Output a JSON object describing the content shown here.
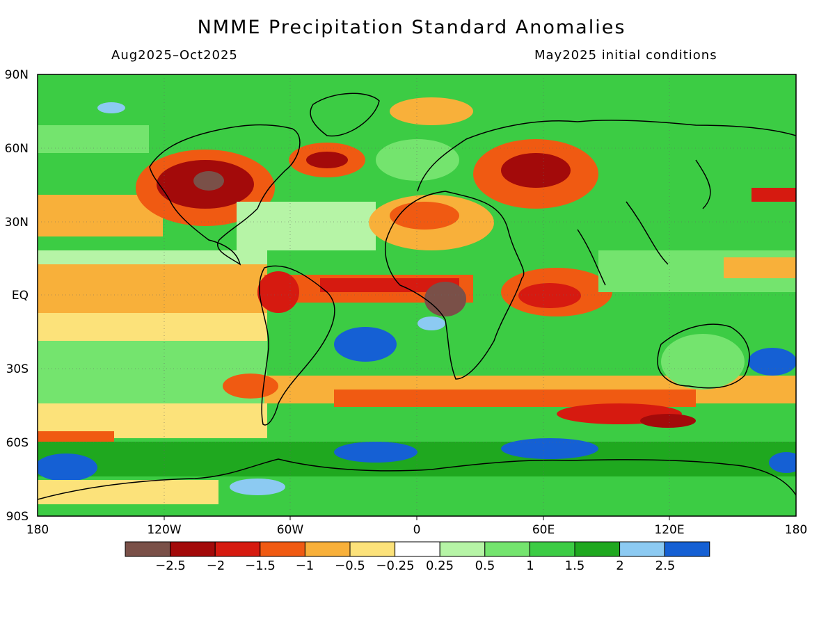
{
  "title": "NMME Precipitation Standard Anomalies",
  "period": "Aug2025–Oct2025",
  "initial_conditions": "May2025 initial conditions",
  "lat_labels": [
    {
      "deg": 90,
      "text": "90N"
    },
    {
      "deg": 60,
      "text": "60N"
    },
    {
      "deg": 30,
      "text": "30N"
    },
    {
      "deg": 0,
      "text": "EQ"
    },
    {
      "deg": -30,
      "text": "30S"
    },
    {
      "deg": -60,
      "text": "60S"
    },
    {
      "deg": -90,
      "text": "90S"
    }
  ],
  "lon_labels": [
    {
      "deg": -180,
      "text": "180"
    },
    {
      "deg": -120,
      "text": "120W"
    },
    {
      "deg": -60,
      "text": "60W"
    },
    {
      "deg": 0,
      "text": "0"
    },
    {
      "deg": 60,
      "text": "60E"
    },
    {
      "deg": 120,
      "text": "120E"
    },
    {
      "deg": 180,
      "text": "180"
    }
  ],
  "colorbar": {
    "colors": [
      "#7a5048",
      "#a30a0a",
      "#d61a10",
      "#f05a12",
      "#f8b03a",
      "#fce27a",
      "#ffffff",
      "#b6f4a6",
      "#74e46e",
      "#3ccc44",
      "#1fa81f",
      "#8ccaf2",
      "#1560d4"
    ],
    "labels": [
      "−2.5",
      "−2",
      "−1.5",
      "−1",
      "−0.5",
      "−0.25",
      "0.25",
      "0.5",
      "1",
      "1.5",
      "2",
      "2.5"
    ]
  }
}
